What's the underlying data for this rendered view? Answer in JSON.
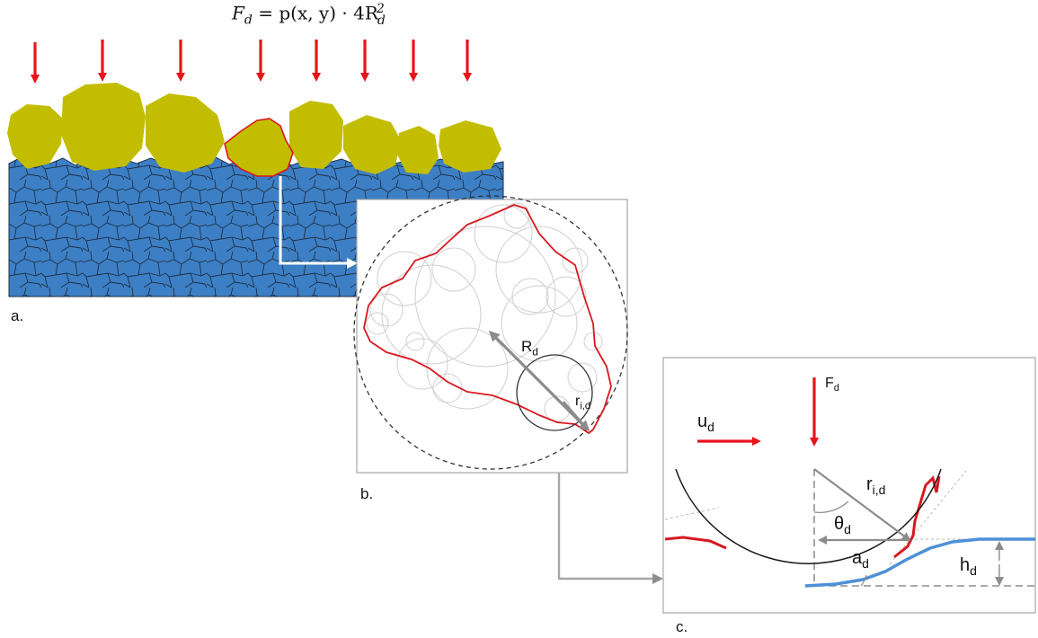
{
  "formula": {
    "lhs": "F",
    "lhs_sub": "d",
    "rhs": "= p(x, y) · 4R",
    "rhs_sub": "d",
    "rhs_sup": "2"
  },
  "panels": {
    "a": "a.",
    "b": "b.",
    "c": "c."
  },
  "labels_b": {
    "R": "R",
    "R_sub": "d",
    "r": "r",
    "r_sub": "i,d"
  },
  "labels_c": {
    "F": "F",
    "F_sub": "d",
    "u": "u",
    "u_sub": "d",
    "r": "r",
    "r_sub": "i,d",
    "theta": "θ",
    "theta_sub": "d",
    "a": "a",
    "a_sub": "d",
    "h": "h",
    "h_sub": "d"
  },
  "colors": {
    "particle": "#c3bd00",
    "substrate": "#3d7fc4",
    "arrow": "#e8141c",
    "contour": "#d81820",
    "grey": "#8c8c8c",
    "surface": "#4d90d6"
  }
}
